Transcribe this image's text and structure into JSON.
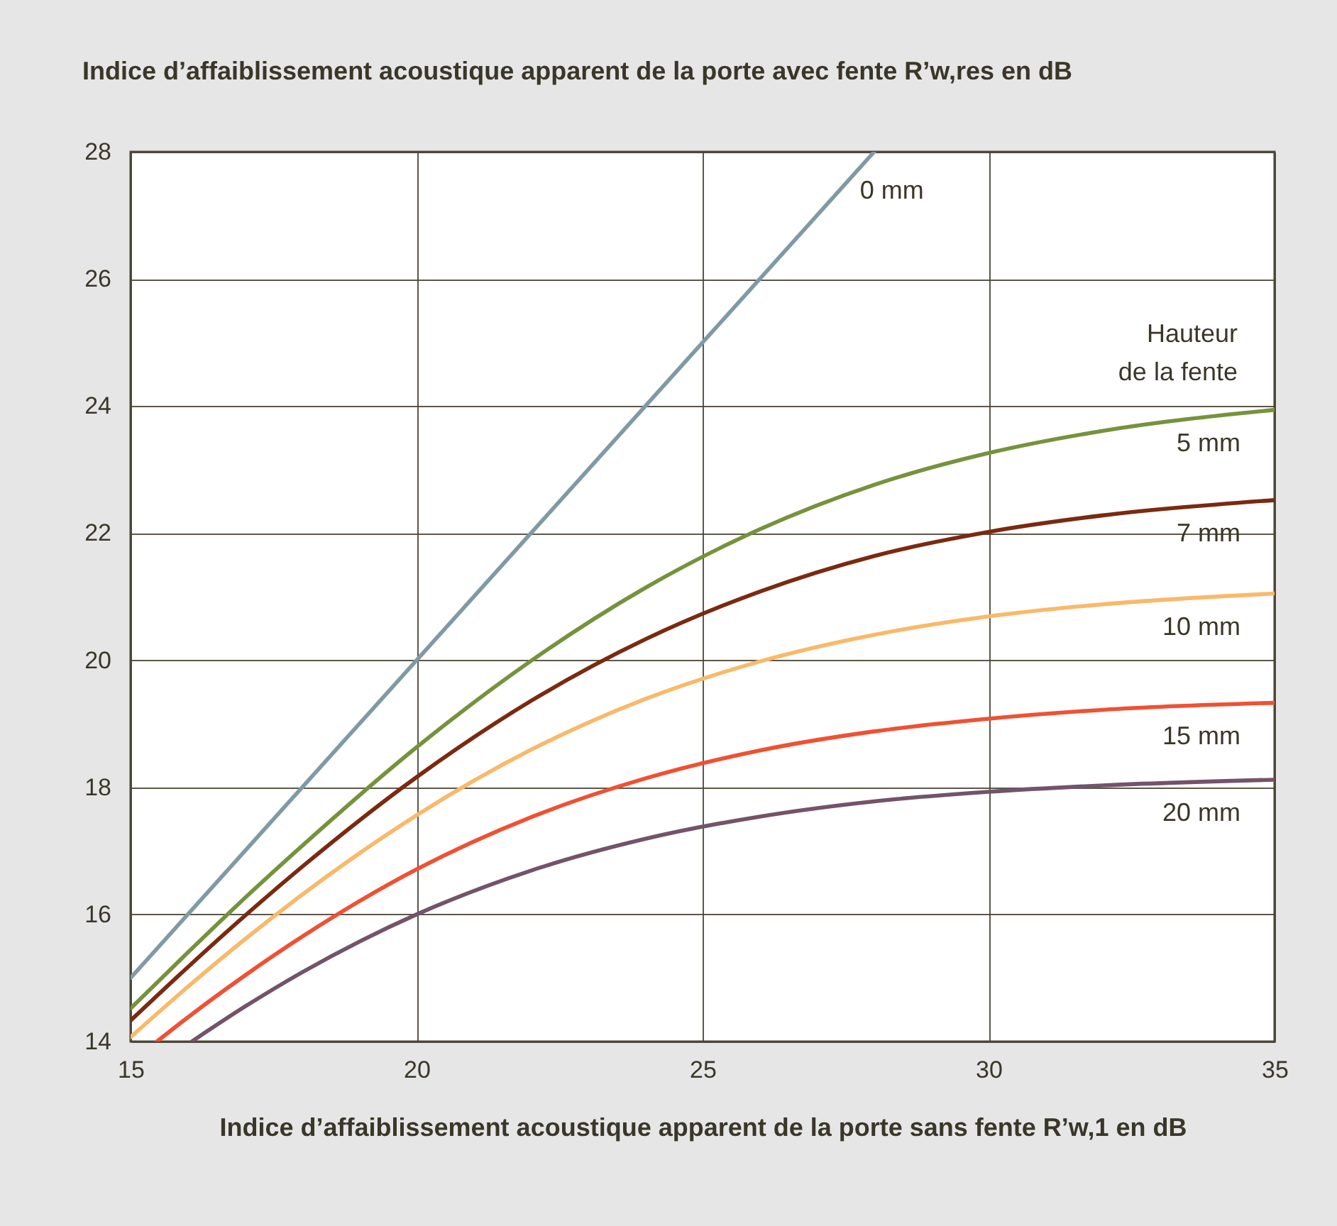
{
  "chart_data": {
    "type": "line",
    "title": "Indice d’affaiblissement acoustique apparent de la porte avec fente R’w,res en dB",
    "xlabel": "Indice d’affaiblissement acoustique apparent de la porte sans fente R’w,1 en dB",
    "xlim": [
      15,
      35
    ],
    "xticks": [
      15,
      20,
      25,
      30,
      35
    ],
    "ylim": [
      14,
      28
    ],
    "yticks": [
      14,
      16,
      18,
      20,
      22,
      24,
      26,
      28
    ],
    "grid": true,
    "legend_title": "Hauteur\nde la fente",
    "series": [
      {
        "name": "0 mm",
        "color": "#7f9aa5",
        "x": [
          15,
          28
        ],
        "values": [
          15,
          28
        ]
      },
      {
        "name": "5 mm",
        "color": "#76923c",
        "x": [
          15,
          16,
          17,
          18,
          20,
          22,
          24,
          26,
          28,
          30,
          32,
          35
        ],
        "values": [
          14.52,
          15.4,
          16.26,
          17.08,
          18.63,
          19.99,
          21.14,
          22.06,
          22.76,
          23.26,
          23.61,
          23.94
        ]
      },
      {
        "name": "7 mm",
        "color": "#7a2a10",
        "x": [
          15,
          16,
          17,
          18,
          20,
          22,
          24,
          26,
          28,
          30,
          32,
          35
        ],
        "values": [
          14.33,
          15.17,
          15.98,
          16.75,
          18.16,
          19.36,
          20.33,
          21.08,
          21.64,
          22.02,
          22.28,
          22.52
        ]
      },
      {
        "name": "10 mm",
        "color": "#f9b96a",
        "x": [
          15,
          16,
          17,
          18,
          20,
          22,
          24,
          26,
          28,
          30,
          32,
          35
        ],
        "values": [
          14.07,
          14.86,
          15.61,
          16.31,
          17.56,
          18.59,
          19.39,
          19.98,
          20.4,
          20.69,
          20.88,
          21.05
        ]
      },
      {
        "name": "15 mm",
        "color": "#ef5133",
        "x": [
          15.46,
          16,
          17,
          18,
          20,
          22,
          24,
          26,
          28,
          30,
          32,
          35
        ],
        "values": [
          14,
          14.38,
          15.04,
          15.65,
          16.71,
          17.53,
          18.14,
          18.58,
          18.88,
          19.08,
          19.22,
          19.33
        ]
      },
      {
        "name": "20 mm",
        "color": "#73536a",
        "x": [
          16.07,
          17,
          18,
          20,
          22,
          24,
          26,
          28,
          30,
          32,
          35
        ],
        "values": [
          14,
          14.55,
          15.09,
          16.0,
          16.69,
          17.19,
          17.54,
          17.78,
          17.93,
          18.03,
          18.12
        ]
      }
    ]
  }
}
